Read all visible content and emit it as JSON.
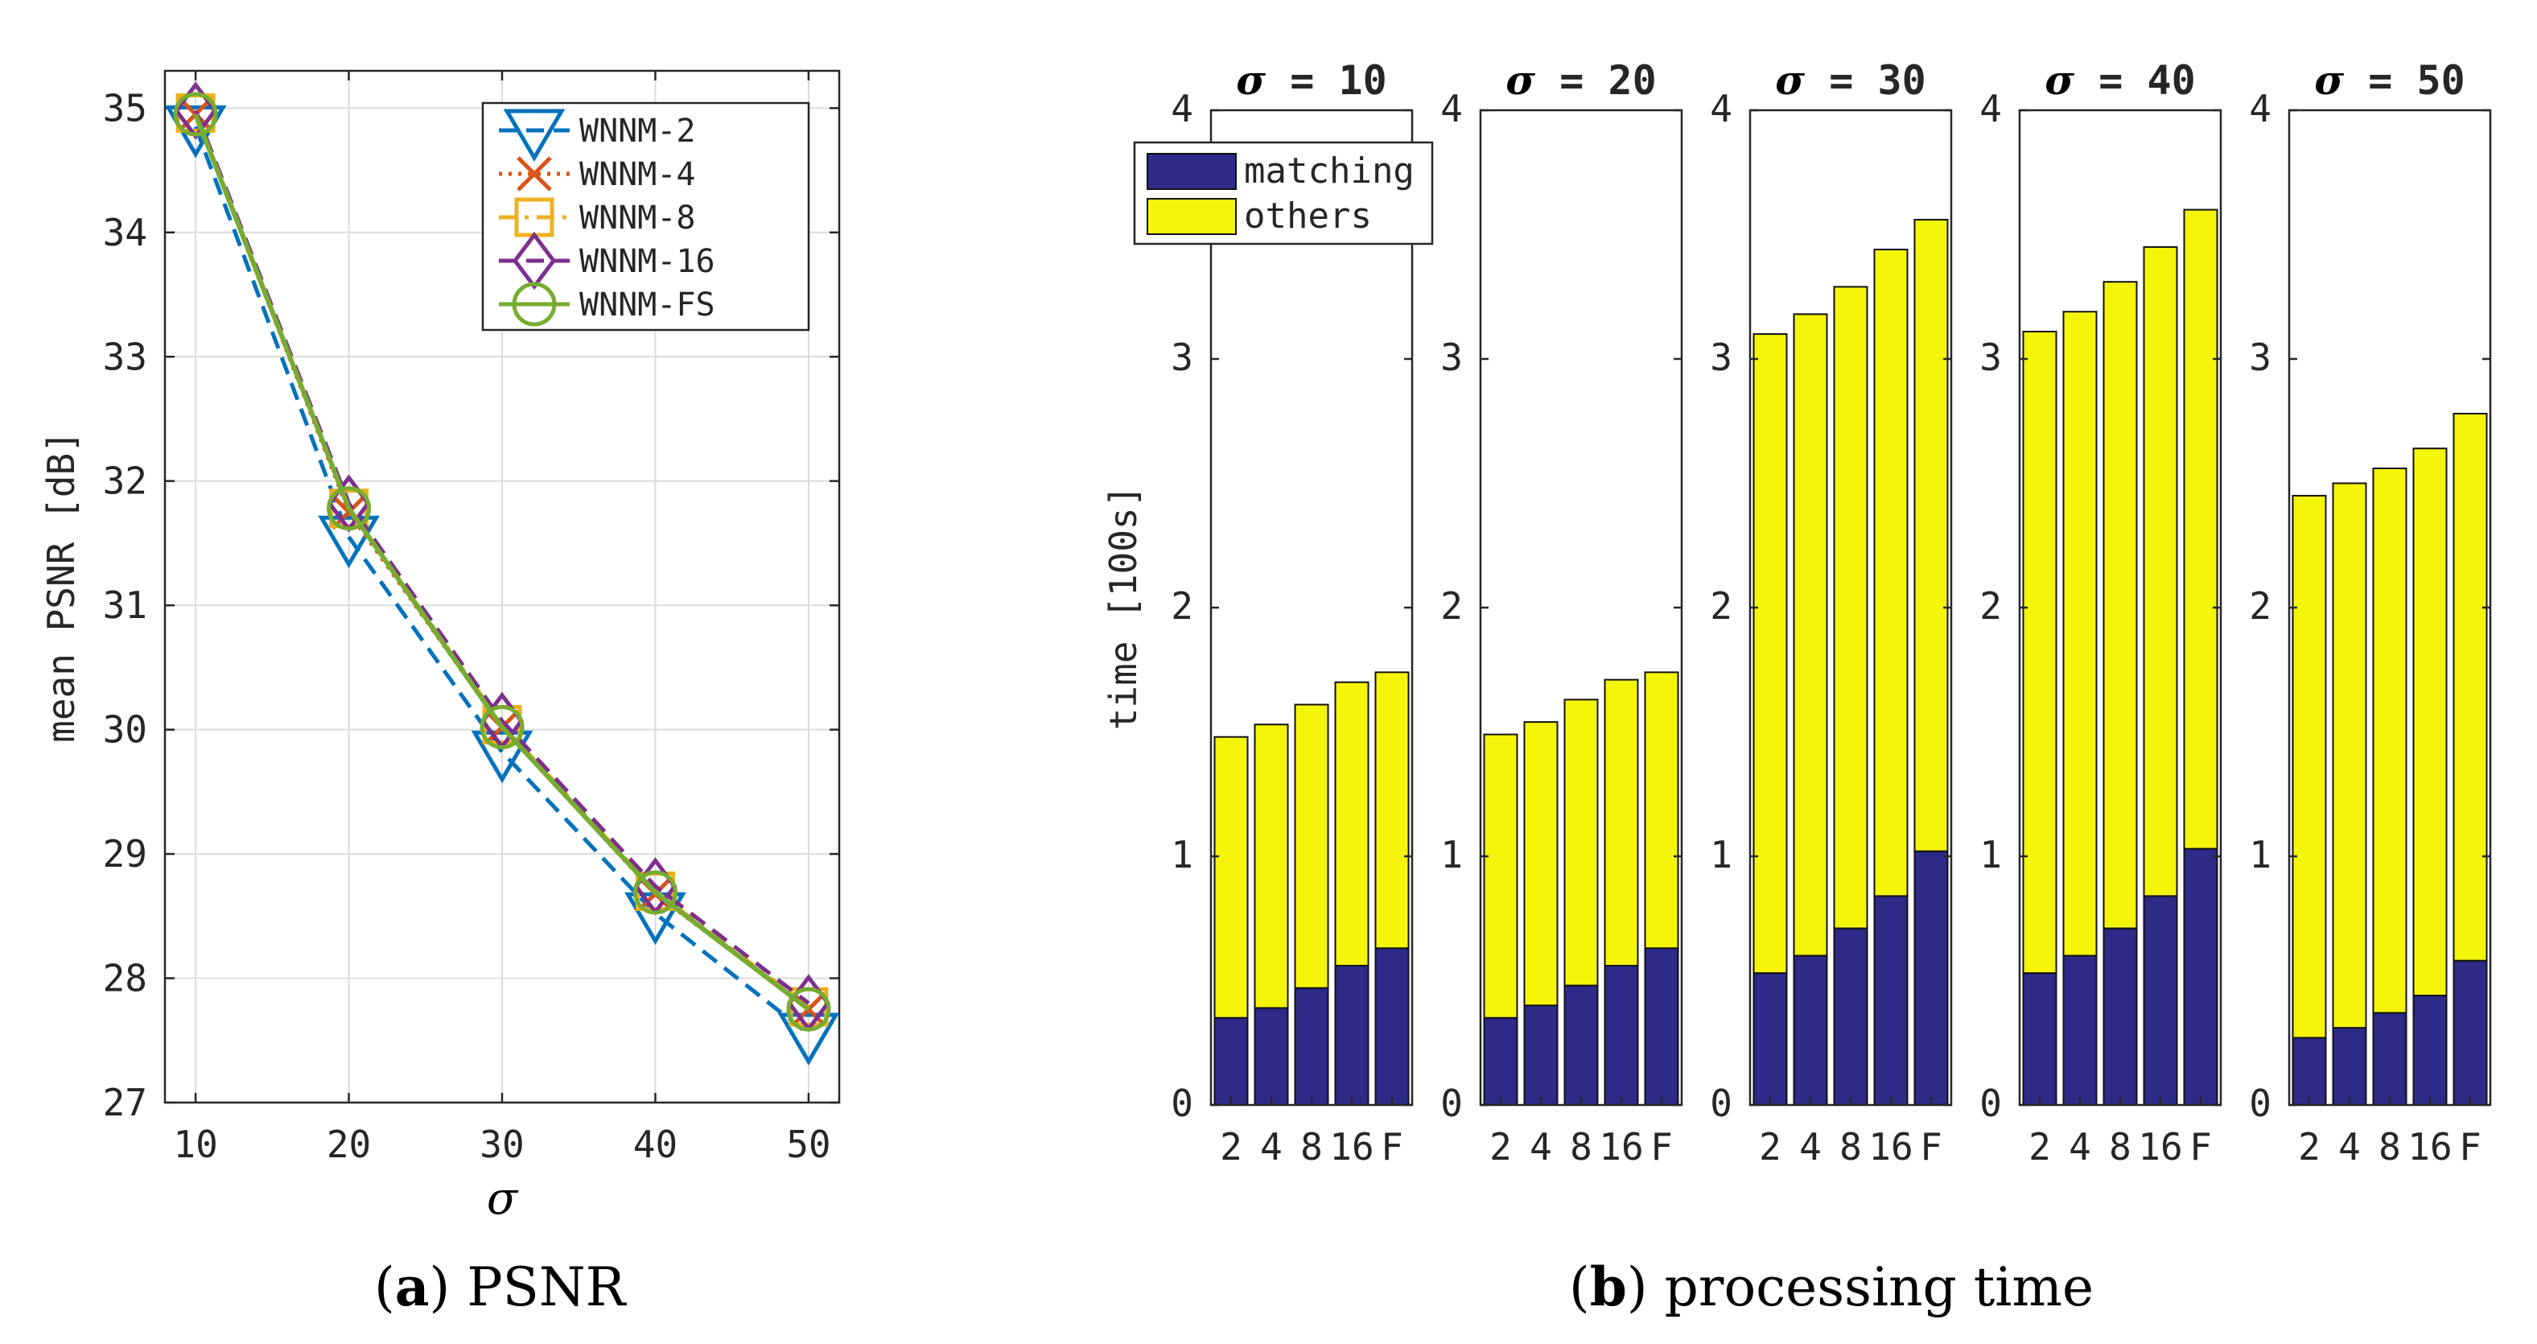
{
  "colors": {
    "series": [
      "#0072BD",
      "#D95319",
      "#EDB120",
      "#7E2F8E",
      "#77AC30"
    ],
    "matching": "#2E2A87",
    "others": "#F5F50A",
    "axis": "#262626",
    "grid": "#DCDCDC"
  },
  "chart_data": [
    {
      "type": "line",
      "panel": "a",
      "xlabel": "σ",
      "ylabel": "mean PSNR [dB]",
      "x": [
        10,
        20,
        30,
        40,
        50
      ],
      "xlim": [
        8,
        52
      ],
      "ylim": [
        27,
        35.3
      ],
      "xticks": [
        "10",
        "20",
        "30",
        "40",
        "50"
      ],
      "yticks": [
        "27",
        "28",
        "29",
        "30",
        "31",
        "32",
        "33",
        "34",
        "35"
      ],
      "grid": true,
      "legend_position": "top-right",
      "series": [
        {
          "name": "WNNM-2",
          "values": [
            34.85,
            31.55,
            29.82,
            28.52,
            27.55
          ],
          "marker": "triangle-down",
          "line": "dashed"
        },
        {
          "name": "WNNM-4",
          "values": [
            34.95,
            31.75,
            30.02,
            28.68,
            27.75
          ],
          "marker": "x",
          "line": "dotted"
        },
        {
          "name": "WNNM-8",
          "values": [
            34.96,
            31.78,
            30.04,
            28.7,
            27.77
          ],
          "marker": "square",
          "line": "dashdot"
        },
        {
          "name": "WNNM-16",
          "values": [
            34.98,
            31.82,
            30.07,
            28.74,
            27.8
          ],
          "marker": "diamond",
          "line": "dashed"
        },
        {
          "name": "WNNM-FS",
          "values": [
            34.95,
            31.78,
            30.02,
            28.69,
            27.75
          ],
          "marker": "circle",
          "line": "solid"
        }
      ]
    },
    {
      "type": "bar",
      "panel": "b",
      "stacked": true,
      "ylabel": "time [100s]",
      "ylim": [
        0,
        4
      ],
      "yticks": [
        "0",
        "1",
        "2",
        "3",
        "4"
      ],
      "categories": [
        "2",
        "4",
        "8",
        "16",
        "F"
      ],
      "legend": [
        "matching",
        "others"
      ],
      "legend_position": "top-left",
      "subplots": [
        {
          "title": "σ = 10",
          "title_value": "10",
          "matching": [
            0.35,
            0.39,
            0.47,
            0.56,
            0.63
          ],
          "total": [
            1.48,
            1.53,
            1.61,
            1.7,
            1.74
          ]
        },
        {
          "title": "σ = 20",
          "title_value": "20",
          "matching": [
            0.35,
            0.4,
            0.48,
            0.56,
            0.63
          ],
          "total": [
            1.49,
            1.54,
            1.63,
            1.71,
            1.74
          ]
        },
        {
          "title": "σ = 30",
          "title_value": "30",
          "matching": [
            0.53,
            0.6,
            0.71,
            0.84,
            1.02
          ],
          "total": [
            3.1,
            3.18,
            3.29,
            3.44,
            3.56
          ]
        },
        {
          "title": "σ = 40",
          "title_value": "40",
          "matching": [
            0.53,
            0.6,
            0.71,
            0.84,
            1.03
          ],
          "total": [
            3.11,
            3.19,
            3.31,
            3.45,
            3.6
          ]
        },
        {
          "title": "σ = 50",
          "title_value": "50",
          "matching": [
            0.27,
            0.31,
            0.37,
            0.44,
            0.58
          ],
          "total": [
            2.45,
            2.5,
            2.56,
            2.64,
            2.78
          ]
        }
      ]
    }
  ],
  "captions": {
    "a_label": "a",
    "a_text": "PSNR",
    "b_label": "b",
    "b_text": "processing time"
  }
}
